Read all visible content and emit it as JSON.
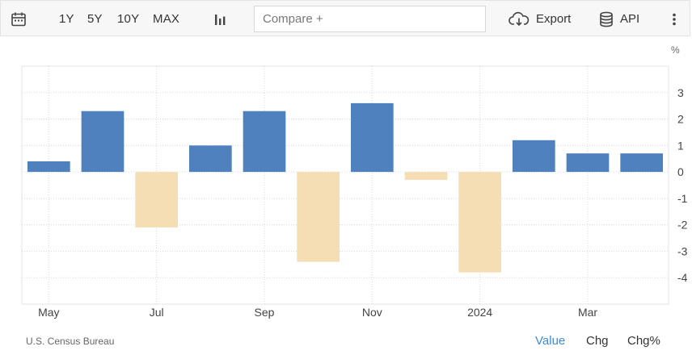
{
  "toolbar": {
    "ranges": [
      "1Y",
      "5Y",
      "10Y",
      "MAX"
    ],
    "compare_placeholder": "Compare +",
    "export_label": "Export",
    "api_label": "API"
  },
  "chart_data": {
    "type": "bar",
    "unit": "%",
    "x_tick_labels": [
      "May",
      "Jul",
      "Sep",
      "Nov",
      "2024",
      "Mar"
    ],
    "categories": [
      "2023-05",
      "2023-06",
      "2023-07",
      "2023-08",
      "2023-09",
      "2023-10",
      "2023-11",
      "2023-12",
      "2024-01",
      "2024-02",
      "2024-03",
      "2024-04"
    ],
    "values": [
      0.4,
      2.3,
      -2.1,
      1.0,
      2.3,
      -3.4,
      2.6,
      -0.3,
      -3.8,
      1.2,
      0.7,
      0.7
    ],
    "y_ticks": [
      3,
      2,
      1,
      0,
      -1,
      -2,
      -3,
      -4
    ],
    "ylim": [
      -5,
      4
    ],
    "positive_color": "#4e81bd",
    "negative_color": "#f5deb3",
    "grid": true,
    "source": "U.S. Census Bureau"
  },
  "footer": {
    "source": "U.S. Census Bureau",
    "buttons": [
      "Value",
      "Chg",
      "Chg%"
    ],
    "active": "Value",
    "active_color": "#3d8bd9"
  }
}
